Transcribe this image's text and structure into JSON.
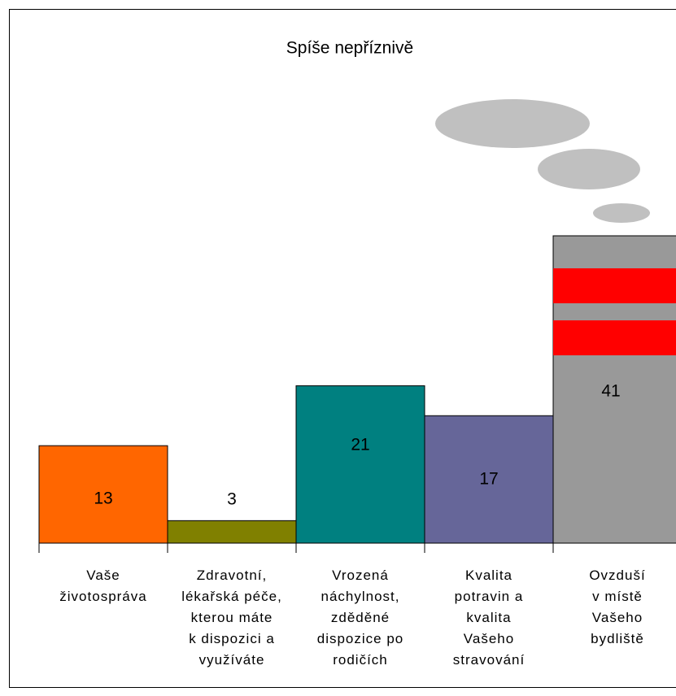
{
  "chart_data": {
    "type": "bar",
    "title": "Spíše nepříznivě",
    "categories": [
      "Vaše\nživotospráva",
      "Zdravotní,\nlékařská péče,\nkterou máte\nk dispozici a\nvyužíváte",
      "Vrozená\nnáchylnost,\nzděděné\ndispozice po\nrodičích",
      "Kvalita\npotravin a\nkvalita\nVašeho\nstravování",
      "Ovzduší\nv místě\nVašeho\nbydliště"
    ],
    "values": [
      13,
      3,
      21,
      17,
      41
    ],
    "colors": [
      "#ff6600",
      "#808000",
      "#008080",
      "#666699",
      "#999999"
    ]
  }
}
